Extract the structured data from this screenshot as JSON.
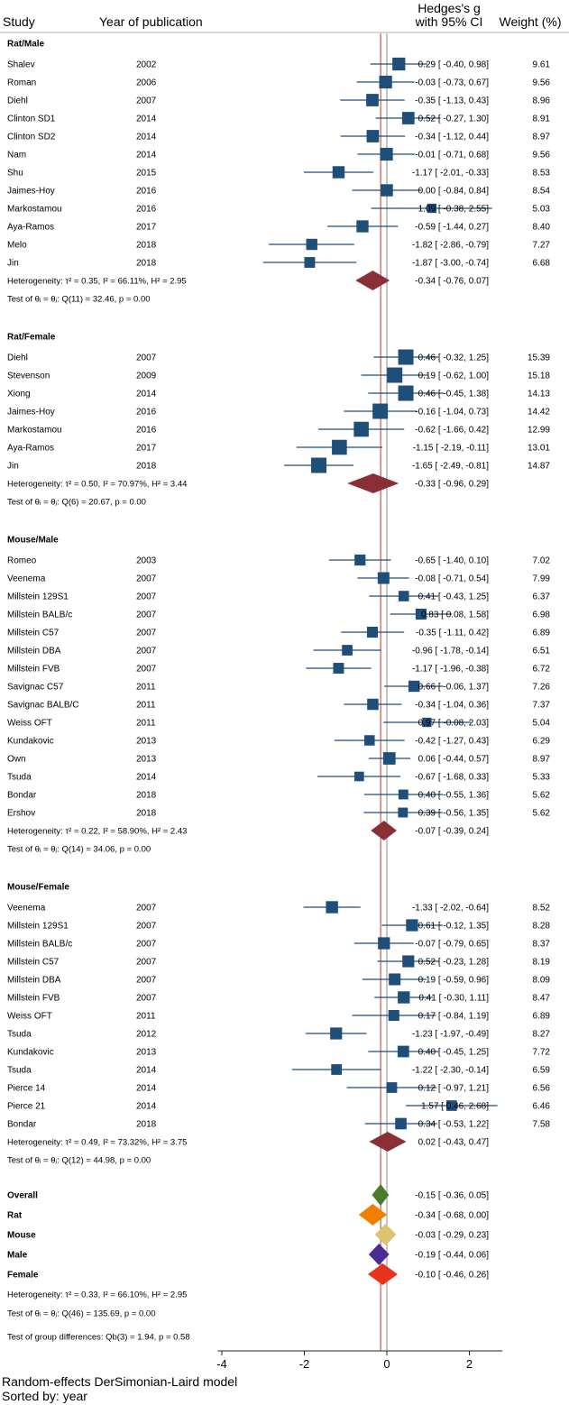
{
  "chart_data": {
    "type": "forest",
    "header": {
      "study": "Study",
      "year": "Year of publication",
      "effect_line1": "Hedges's g",
      "effect_line2": "with 95% CI",
      "weight": "Weight (%)"
    },
    "xaxis": {
      "ticks": [
        -4,
        -2,
        0,
        2
      ],
      "range": [
        -4.1,
        2.8
      ],
      "null_line": 0,
      "overall_line": -0.15
    },
    "footer": {
      "model": "Random-effects DerSimonian-Laird model",
      "sorted": "Sorted by: year"
    },
    "colors": {
      "box": "#1f4e79",
      "ci": "#1f4e79",
      "subgroup_diamond": "#8b2f37",
      "null_line": "#8b8b8b",
      "overall_line": "#c0392b"
    },
    "groups": [
      {
        "title": "Rat/Male",
        "studies": [
          {
            "name": "Shalev",
            "year": "2002",
            "g": 0.29,
            "lo": -0.4,
            "hi": 0.98,
            "ci_text": "0.29 [ -0.40,   0.98]",
            "weight": "9.61"
          },
          {
            "name": "Roman",
            "year": "2006",
            "g": -0.03,
            "lo": -0.73,
            "hi": 0.67,
            "ci_text": "-0.03 [ -0.73,   0.67]",
            "weight": "9.56"
          },
          {
            "name": "Diehl",
            "year": "2007",
            "g": -0.35,
            "lo": -1.13,
            "hi": 0.43,
            "ci_text": "-0.35 [ -1.13,   0.43]",
            "weight": "8.96"
          },
          {
            "name": "Clinton SD1",
            "year": "2014",
            "g": 0.52,
            "lo": -0.27,
            "hi": 1.3,
            "ci_text": "0.52 [ -0.27,   1.30]",
            "weight": "8.91"
          },
          {
            "name": "Clinton SD2",
            "year": "2014",
            "g": -0.34,
            "lo": -1.12,
            "hi": 0.44,
            "ci_text": "-0.34 [ -1.12,   0.44]",
            "weight": "8.97"
          },
          {
            "name": "Nam",
            "year": "2014",
            "g": -0.01,
            "lo": -0.71,
            "hi": 0.68,
            "ci_text": "-0.01 [ -0.71,   0.68]",
            "weight": "9.56"
          },
          {
            "name": "Shu",
            "year": "2015",
            "g": -1.17,
            "lo": -2.01,
            "hi": -0.33,
            "ci_text": "-1.17 [ -2.01,  -0.33]",
            "weight": "8.53"
          },
          {
            "name": "Jaimes-Hoy",
            "year": "2016",
            "g": 0.0,
            "lo": -0.84,
            "hi": 0.84,
            "ci_text": "0.00 [ -0.84,   0.84]",
            "weight": "8.54"
          },
          {
            "name": "Markostamou",
            "year": "2016",
            "g": 1.09,
            "lo": -0.38,
            "hi": 2.55,
            "ci_text": "1.09 [ -0.38,   2.55]",
            "weight": "5.03"
          },
          {
            "name": "Aya-Ramos",
            "year": "2017",
            "g": -0.59,
            "lo": -1.44,
            "hi": 0.27,
            "ci_text": "-0.59 [ -1.44,   0.27]",
            "weight": "8.40"
          },
          {
            "name": "Melo",
            "year": "2018",
            "g": -1.82,
            "lo": -2.86,
            "hi": -0.79,
            "ci_text": "-1.82 [ -2.86,  -0.79]",
            "weight": "7.27"
          },
          {
            "name": "Jin",
            "year": "2018",
            "g": -1.87,
            "lo": -3.0,
            "hi": -0.74,
            "ci_text": "-1.87 [ -3.00,  -0.74]",
            "weight": "6.68"
          }
        ],
        "summary": {
          "g": -0.34,
          "lo": -0.76,
          "hi": 0.07,
          "ci_text": "-0.34 [ -0.76,   0.07]"
        },
        "heterogeneity": "Heterogeneity: τ² = 0.35, I² = 66.11%, H² = 2.95",
        "test": "Test of θᵢ = θⱼ: Q(11) = 32.46, p = 0.00"
      },
      {
        "title": "Rat/Female",
        "studies": [
          {
            "name": "Diehl",
            "year": "2007",
            "g": 0.46,
            "lo": -0.32,
            "hi": 1.25,
            "ci_text": "0.46 [ -0.32,   1.25]",
            "weight": "15.39"
          },
          {
            "name": "Stevenson",
            "year": "2009",
            "g": 0.19,
            "lo": -0.62,
            "hi": 1.0,
            "ci_text": "0.19 [ -0.62,   1.00]",
            "weight": "15.18"
          },
          {
            "name": "Xiong",
            "year": "2014",
            "g": 0.46,
            "lo": -0.45,
            "hi": 1.38,
            "ci_text": "0.46 [ -0.45,   1.38]",
            "weight": "14.13"
          },
          {
            "name": "Jaimes-Hoy",
            "year": "2016",
            "g": -0.16,
            "lo": -1.04,
            "hi": 0.73,
            "ci_text": "-0.16 [ -1.04,   0.73]",
            "weight": "14.42"
          },
          {
            "name": "Markostamou",
            "year": "2016",
            "g": -0.62,
            "lo": -1.66,
            "hi": 0.42,
            "ci_text": "-0.62 [ -1.66,   0.42]",
            "weight": "12.99"
          },
          {
            "name": "Aya-Ramos",
            "year": "2017",
            "g": -1.15,
            "lo": -2.19,
            "hi": -0.11,
            "ci_text": "-1.15 [ -2.19,  -0.11]",
            "weight": "13.01"
          },
          {
            "name": "Jin",
            "year": "2018",
            "g": -1.65,
            "lo": -2.49,
            "hi": -0.81,
            "ci_text": "-1.65 [ -2.49,  -0.81]",
            "weight": "14.87"
          }
        ],
        "summary": {
          "g": -0.33,
          "lo": -0.96,
          "hi": 0.29,
          "ci_text": "-0.33 [ -0.96,   0.29]"
        },
        "heterogeneity": "Heterogeneity: τ² = 0.50, I² = 70.97%, H² = 3.44",
        "test": "Test of θᵢ = θⱼ: Q(6) = 20.67, p = 0.00"
      },
      {
        "title": "Mouse/Male",
        "studies": [
          {
            "name": "Romeo",
            "year": "2003",
            "g": -0.65,
            "lo": -1.4,
            "hi": 0.1,
            "ci_text": "-0.65 [ -1.40,   0.10]",
            "weight": "7.02"
          },
          {
            "name": "Veenema",
            "year": "2007",
            "g": -0.08,
            "lo": -0.71,
            "hi": 0.54,
            "ci_text": "-0.08 [ -0.71,   0.54]",
            "weight": "7.99"
          },
          {
            "name": "Millstein 129S1",
            "year": "2007",
            "g": 0.41,
            "lo": -0.43,
            "hi": 1.25,
            "ci_text": "0.41 [ -0.43,   1.25]",
            "weight": "6.37"
          },
          {
            "name": "Millstein BALB/c",
            "year": "2007",
            "g": 0.83,
            "lo": 0.08,
            "hi": 1.58,
            "ci_text": "0.83 [  0.08,   1.58]",
            "weight": "6.98"
          },
          {
            "name": "Millstein C57",
            "year": "2007",
            "g": -0.35,
            "lo": -1.11,
            "hi": 0.42,
            "ci_text": "-0.35 [ -1.11,   0.42]",
            "weight": "6.89"
          },
          {
            "name": "Millstein DBA",
            "year": "2007",
            "g": -0.96,
            "lo": -1.78,
            "hi": -0.14,
            "ci_text": "-0.96 [ -1.78,  -0.14]",
            "weight": "6.51"
          },
          {
            "name": "Millstein FVB",
            "year": "2007",
            "g": -1.17,
            "lo": -1.96,
            "hi": -0.38,
            "ci_text": "-1.17 [ -1.96,  -0.38]",
            "weight": "6.72"
          },
          {
            "name": "Savignac C57",
            "year": "2011",
            "g": 0.66,
            "lo": -0.06,
            "hi": 1.37,
            "ci_text": "0.66 [ -0.06,   1.37]",
            "weight": "7.26"
          },
          {
            "name": "Savignac BALB/C",
            "year": "2011",
            "g": -0.34,
            "lo": -1.04,
            "hi": 0.36,
            "ci_text": "-0.34 [ -1.04,   0.36]",
            "weight": "7.37"
          },
          {
            "name": "Weiss OFT",
            "year": "2011",
            "g": 0.97,
            "lo": -0.08,
            "hi": 2.03,
            "ci_text": "0.97 [ -0.08,   2.03]",
            "weight": "5.04"
          },
          {
            "name": "Kundakovic",
            "year": "2013",
            "g": -0.42,
            "lo": -1.27,
            "hi": 0.43,
            "ci_text": "-0.42 [ -1.27,   0.43]",
            "weight": "6.29"
          },
          {
            "name": "Own",
            "year": "2013",
            "g": 0.06,
            "lo": -0.44,
            "hi": 0.57,
            "ci_text": "0.06 [ -0.44,   0.57]",
            "weight": "8.97"
          },
          {
            "name": "Tsuda",
            "year": "2014",
            "g": -0.67,
            "lo": -1.68,
            "hi": 0.33,
            "ci_text": "-0.67 [ -1.68,   0.33]",
            "weight": "5.33"
          },
          {
            "name": "Bondar",
            "year": "2018",
            "g": 0.4,
            "lo": -0.55,
            "hi": 1.36,
            "ci_text": "0.40 [ -0.55,   1.36]",
            "weight": "5.62"
          },
          {
            "name": "Ershov",
            "year": "2018",
            "g": 0.39,
            "lo": -0.56,
            "hi": 1.35,
            "ci_text": "0.39 [ -0.56,   1.35]",
            "weight": "5.62"
          }
        ],
        "summary": {
          "g": -0.07,
          "lo": -0.39,
          "hi": 0.24,
          "ci_text": "-0.07 [ -0.39,   0.24]"
        },
        "heterogeneity": "Heterogeneity: τ² = 0.22, I² = 58.90%, H² = 2.43",
        "test": "Test of θᵢ = θⱼ: Q(14) = 34.06, p = 0.00"
      },
      {
        "title": "Mouse/Female",
        "studies": [
          {
            "name": "Veenema",
            "year": "2007",
            "g": -1.33,
            "lo": -2.02,
            "hi": -0.64,
            "ci_text": "-1.33 [ -2.02,  -0.64]",
            "weight": "8.52"
          },
          {
            "name": "Millstein 129S1",
            "year": "2007",
            "g": 0.61,
            "lo": -0.12,
            "hi": 1.35,
            "ci_text": "0.61 [ -0.12,   1.35]",
            "weight": "8.28"
          },
          {
            "name": "Millstein BALB/c",
            "year": "2007",
            "g": -0.07,
            "lo": -0.79,
            "hi": 0.65,
            "ci_text": "-0.07 [ -0.79,   0.65]",
            "weight": "8.37"
          },
          {
            "name": "Millstein C57",
            "year": "2007",
            "g": 0.52,
            "lo": -0.23,
            "hi": 1.28,
            "ci_text": "0.52 [ -0.23,   1.28]",
            "weight": "8.19"
          },
          {
            "name": "Millstein DBA",
            "year": "2007",
            "g": 0.19,
            "lo": -0.59,
            "hi": 0.96,
            "ci_text": "0.19 [ -0.59,   0.96]",
            "weight": "8.09"
          },
          {
            "name": "Millstein FVB",
            "year": "2007",
            "g": 0.41,
            "lo": -0.3,
            "hi": 1.11,
            "ci_text": "0.41 [ -0.30,   1.11]",
            "weight": "8.47"
          },
          {
            "name": "Weiss OFT",
            "year": "2011",
            "g": 0.17,
            "lo": -0.84,
            "hi": 1.19,
            "ci_text": "0.17 [ -0.84,   1.19]",
            "weight": "6.89"
          },
          {
            "name": "Tsuda",
            "year": "2012",
            "g": -1.23,
            "lo": -1.97,
            "hi": -0.49,
            "ci_text": "-1.23 [ -1.97,  -0.49]",
            "weight": "8.27"
          },
          {
            "name": "Kundakovic",
            "year": "2013",
            "g": 0.4,
            "lo": -0.45,
            "hi": 1.25,
            "ci_text": "0.40 [ -0.45,   1.25]",
            "weight": "7.72"
          },
          {
            "name": "Tsuda",
            "year": "2014",
            "g": -1.22,
            "lo": -2.3,
            "hi": -0.14,
            "ci_text": "-1.22 [ -2.30,  -0.14]",
            "weight": "6.59"
          },
          {
            "name": "Pierce 14",
            "year": "2014",
            "g": 0.12,
            "lo": -0.97,
            "hi": 1.21,
            "ci_text": "0.12 [ -0.97,   1.21]",
            "weight": "6.56"
          },
          {
            "name": "Pierce 21",
            "year": "2014",
            "g": 1.57,
            "lo": 0.46,
            "hi": 2.68,
            "ci_text": "1.57 [  0.46,   2.68]",
            "weight": "6.46"
          },
          {
            "name": "Bondar",
            "year": "2018",
            "g": 0.34,
            "lo": -0.53,
            "hi": 1.22,
            "ci_text": "0.34 [ -0.53,   1.22]",
            "weight": "7.58"
          }
        ],
        "summary": {
          "g": 0.02,
          "lo": -0.43,
          "hi": 0.47,
          "ci_text": "0.02 [ -0.43,   0.47]"
        },
        "heterogeneity": "Heterogeneity: τ² = 0.49, I² = 73.32%, H² = 3.75",
        "test": "Test of θᵢ = θⱼ: Q(12) = 44.98, p = 0.00"
      }
    ],
    "overall": [
      {
        "label": "Overall",
        "g": -0.15,
        "lo": -0.36,
        "hi": 0.05,
        "ci_text": "-0.15 [ -0.36,   0.05]",
        "color": "#4a7a2c"
      },
      {
        "label": "Rat",
        "g": -0.34,
        "lo": -0.68,
        "hi": 0.0,
        "ci_text": "-0.34 [ -0.68,   0.00]",
        "color": "#f07f00"
      },
      {
        "label": "Mouse",
        "g": -0.03,
        "lo": -0.29,
        "hi": 0.23,
        "ci_text": "-0.03 [ -0.29,   0.23]",
        "color": "#dcc372"
      },
      {
        "label": "Male",
        "g": -0.19,
        "lo": -0.44,
        "hi": 0.06,
        "ci_text": "-0.19 [ -0.44,   0.06]",
        "color": "#4b2c95"
      },
      {
        "label": "Female",
        "g": -0.1,
        "lo": -0.46,
        "hi": 0.26,
        "ci_text": "-0.10 [ -0.46,   0.26]",
        "color": "#e8321c"
      }
    ],
    "overall_stats": {
      "heterogeneity": "Heterogeneity: τ² = 0.33, I² = 66.10%, H² = 2.95",
      "test": "Test of θᵢ = θⱼ: Q(46) = 135.69, p = 0.00",
      "group_diff": "Test of group differences: Qb(3) = 1.94, p = 0.58"
    }
  }
}
